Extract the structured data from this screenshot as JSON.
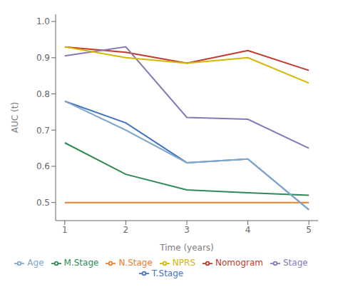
{
  "chart_data": {
    "type": "line",
    "xlabel": "Time (years)",
    "ylabel": "AUC (t)",
    "x": [
      1,
      2,
      3,
      4,
      5
    ],
    "series": [
      {
        "name": "Nomogram",
        "color": "#c0392b",
        "values": [
          0.93,
          0.915,
          0.885,
          0.92,
          0.865
        ]
      },
      {
        "name": "T.Stage",
        "color": "#4472c4",
        "values": [
          0.78,
          0.72,
          0.61,
          0.62,
          0.48
        ]
      },
      {
        "name": "N.Stage",
        "color": "#ed7d31",
        "values": [
          0.5,
          0.5,
          0.5,
          0.5,
          0.5
        ]
      },
      {
        "name": "M.Stage",
        "color": "#2e8b57",
        "values": [
          0.665,
          0.578,
          0.535,
          0.527,
          0.52
        ]
      },
      {
        "name": "Stage",
        "color": "#8878b8",
        "values": [
          0.905,
          0.93,
          0.735,
          0.73,
          0.65
        ]
      },
      {
        "name": "Age",
        "color": "#7fa8c9",
        "values": [
          0.78,
          0.7,
          0.61,
          0.62,
          0.48
        ]
      },
      {
        "name": "NPRS",
        "color": "#d4b800",
        "values": [
          0.93,
          0.9,
          0.885,
          0.9,
          0.83
        ]
      }
    ],
    "xlim": [
      0.85,
      5.15
    ],
    "ylim": [
      0.45,
      1.02
    ],
    "xticks": [
      1,
      2,
      3,
      4,
      5
    ],
    "yticks": [
      0.5,
      0.6,
      0.7,
      0.8,
      0.9,
      {
        "value": 1.0,
        "label": "1.0"
      }
    ],
    "grid": false,
    "legend": "bottom"
  }
}
